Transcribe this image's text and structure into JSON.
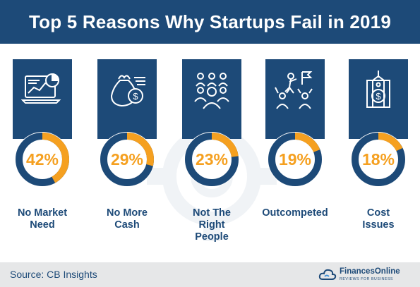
{
  "title": "Top 5 Reasons Why Startups Fail in 2019",
  "footer": {
    "source": "Source: CB Insights",
    "logo_name": "FinancesOnline",
    "logo_tagline": "REVIEWS FOR BUSINESS"
  },
  "colors": {
    "navy": "#1d4a78",
    "orange": "#f5a020",
    "footer_bg": "#e6e7e8"
  },
  "icons": [
    "laptop-chart-icon",
    "money-bag-icon",
    "team-people-icon",
    "competitor-climb-icon",
    "price-tag-icon"
  ],
  "chart_data": {
    "type": "pie",
    "title": "Top 5 Reasons Why Startups Fail in 2019",
    "categories": [
      "No Market\nNeed",
      "No More\nCash",
      "Not The\nRight\nPeople",
      "Outcompeted",
      "Cost\nIssues"
    ],
    "values": [
      42,
      29,
      23,
      19,
      18
    ],
    "value_labels": [
      "42%",
      "29%",
      "23%",
      "19%",
      "18%"
    ],
    "unit": "%"
  }
}
